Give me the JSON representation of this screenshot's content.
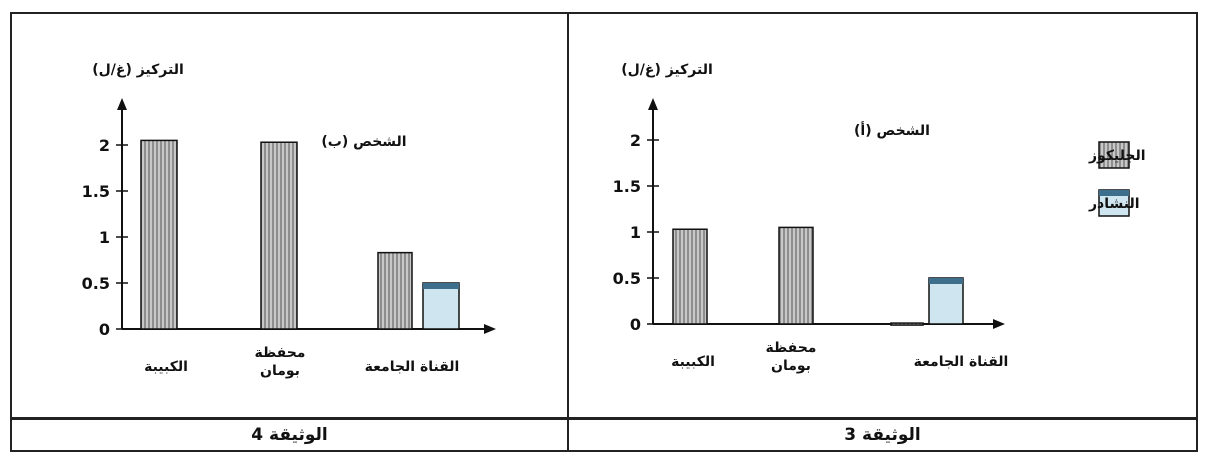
{
  "panels": [
    {
      "caption": "الوثيقة 4",
      "chart_data": {
        "type": "bar",
        "title": "الشخص (ب)",
        "ylabel": "التركيز (غ/ل)",
        "categories": [
          "الكبيبة",
          "محفظة بومان",
          "القناة الجامعة"
        ],
        "series": [
          {
            "name": "الجليكوز",
            "values": [
              2.05,
              2.03,
              0.83
            ]
          },
          {
            "name": "النشادر",
            "values": [
              null,
              null,
              0.5
            ]
          }
        ],
        "yticks": [
          "0",
          "0.5",
          "1",
          "1.5",
          "2"
        ],
        "ylim": [
          0,
          2.6
        ],
        "legend": "none"
      }
    },
    {
      "caption": "الوثيقة 3",
      "chart_data": {
        "type": "bar",
        "title": "الشخص (أ)",
        "ylabel": "التركيز (غ/ل)",
        "categories": [
          "الكبيبة",
          "محفظة بومان",
          "القناة الجامعة"
        ],
        "series": [
          {
            "name": "الجليكوز",
            "values": [
              1.03,
              1.05,
              0.01
            ]
          },
          {
            "name": "النشادر",
            "values": [
              null,
              null,
              0.5
            ]
          }
        ],
        "yticks": [
          "0",
          "0.5",
          "1",
          "1.5",
          "2"
        ],
        "ylim": [
          0,
          2.6
        ],
        "legend": "right"
      }
    }
  ],
  "colors": {
    "glucose_fill": "#c8c8c8",
    "glucose_stripe": "#8e8e8e",
    "ammonia_fill": "#cfe6f0",
    "ammonia_top": "#3d6f8c",
    "line": "#111111"
  }
}
